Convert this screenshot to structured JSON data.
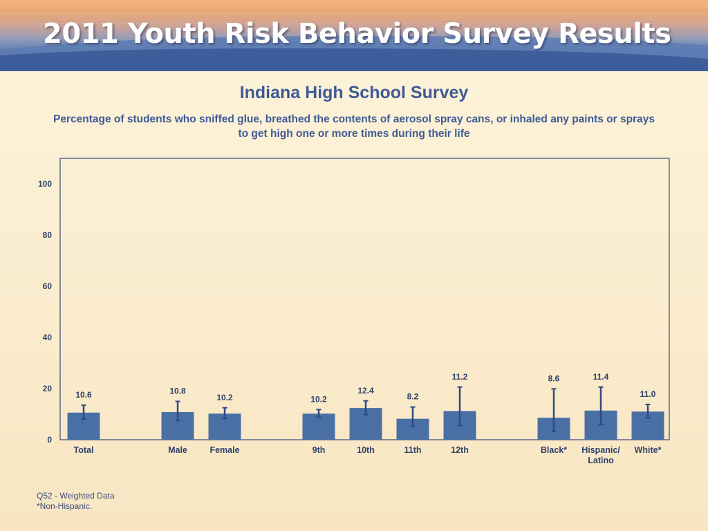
{
  "banner": {
    "title": "2011 Youth Risk Behavior Survey Results"
  },
  "colors": {
    "bar": "#4a6fa5",
    "errorbar": "#2e4a80",
    "text": "#3f5a96",
    "axis": "#34487a"
  },
  "chart_data": {
    "type": "bar",
    "title": "Indiana High School Survey",
    "subtitle": "Percentage of students who sniffed glue, breathed the contents of aerosol spray cans, or inhaled any paints or sprays to get high one or more times during their life",
    "ylim": [
      0,
      100
    ],
    "yticks": [
      0,
      20,
      40,
      60,
      80,
      100
    ],
    "grid": false,
    "categories": [
      "Total",
      "",
      "Male",
      "Female",
      "",
      "9th",
      "10th",
      "11th",
      "12th",
      "",
      "Black*",
      "Hispanic/\nLatino",
      "White*"
    ],
    "values": [
      10.6,
      null,
      10.8,
      10.2,
      null,
      10.2,
      12.4,
      8.2,
      11.2,
      null,
      8.6,
      11.4,
      11.0
    ],
    "value_labels": [
      "10.6",
      "",
      "10.8",
      "10.2",
      "",
      "10.2",
      "12.4",
      "8.2",
      "11.2",
      "",
      "8.6",
      "11.4",
      "11.0"
    ],
    "ci_low": [
      8.0,
      null,
      7.5,
      8.3,
      null,
      8.8,
      9.8,
      5.3,
      5.6,
      null,
      3.3,
      5.9,
      8.5
    ],
    "ci_high": [
      13.5,
      null,
      15.0,
      12.5,
      null,
      11.8,
      15.2,
      12.8,
      20.6,
      null,
      19.9,
      20.6,
      13.8
    ]
  },
  "footnotes": {
    "line1": "Q52 - Weighted Data",
    "line2": "*Non-Hispanic."
  }
}
